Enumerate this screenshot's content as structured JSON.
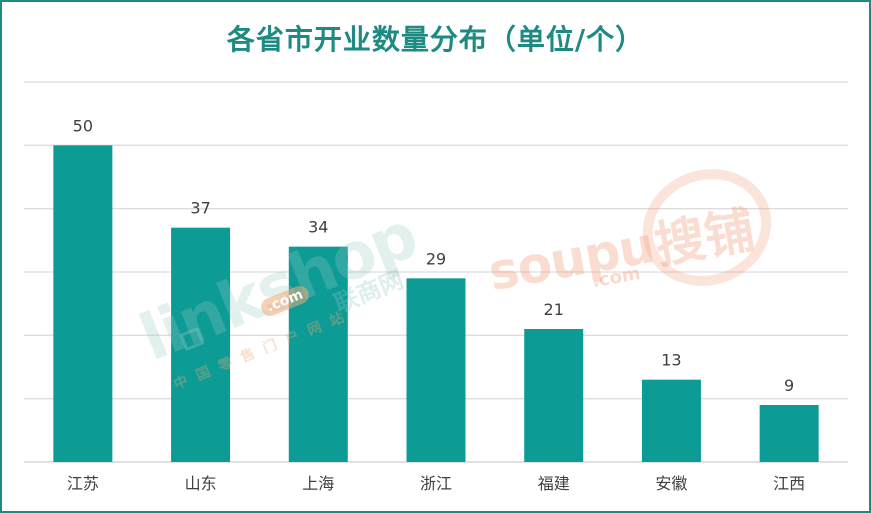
{
  "chart_data": {
    "type": "bar",
    "title": "各省市开业数量分布（单位/个）",
    "categories": [
      "江苏",
      "山东",
      "上海",
      "浙江",
      "福建",
      "安徽",
      "江西"
    ],
    "values": [
      50,
      37,
      34,
      29,
      21,
      13,
      9
    ],
    "ylim": [
      0,
      60
    ],
    "grid": true,
    "bar_color": "#0d9b96",
    "title_color": "#1e8a82"
  },
  "watermarks": {
    "soupu": "soupu",
    "soupu_cn": "搜铺",
    "soupu_com": ".com",
    "linkshop": "linkshop",
    "linkshop_com": ".com",
    "linkshop_cn": "联商网",
    "linkshop_sub": "中国零售门户网站"
  }
}
